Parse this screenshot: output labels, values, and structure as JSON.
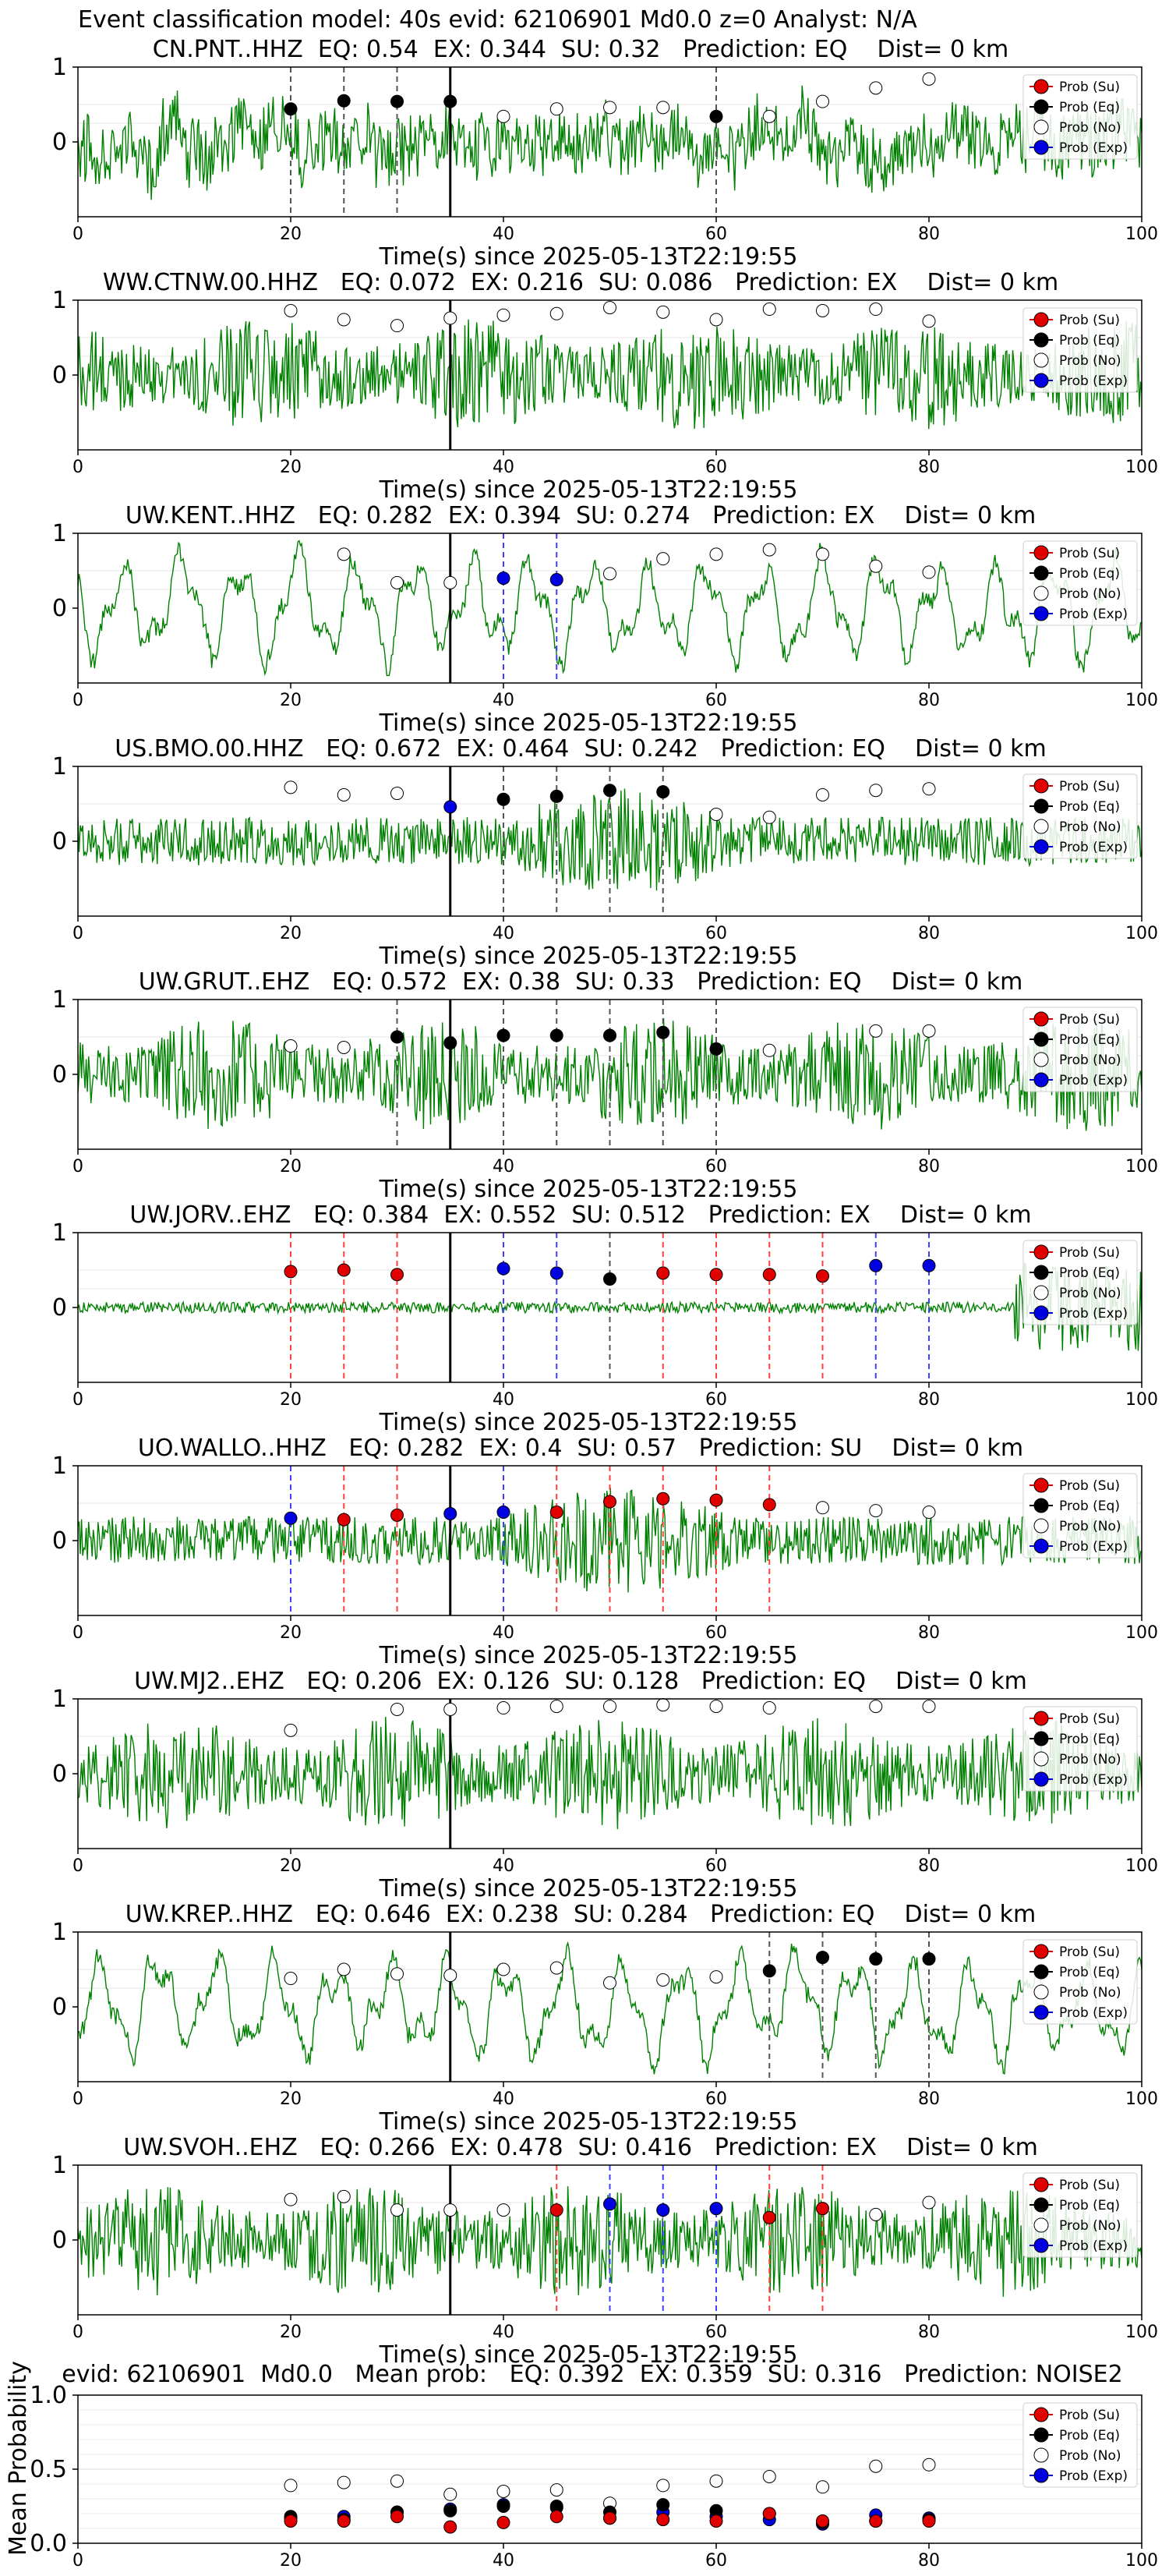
{
  "suptitle": "Event classification model: 40s evid: 62106901 Md0.0 z=0 Analyst: N/A",
  "colors": {
    "trace": "#008000",
    "su": "#e00000",
    "eq": "#000000",
    "no": "#ffffff",
    "exp": "#0000e0",
    "su_line": "#ff4040",
    "eq_line": "#555555",
    "exp_line": "#4040ff"
  },
  "legend_labels": [
    "Prob (Su)",
    "Prob (Eq)",
    "Prob (No)",
    "Prob (Exp)"
  ],
  "chart_data": [
    {
      "type": "line",
      "title": "CN.PNT..HHZ  EQ: 0.54  EX: 0.344  SU: 0.32   Prediction: EQ    Dist= 0 km",
      "xlabel": "Time(s) since 2025-05-13T22:19:55",
      "xlim": [
        0,
        100
      ],
      "ylim": [
        -1,
        1
      ],
      "xticks": [
        "0",
        "20",
        "40",
        "60",
        "80",
        "100"
      ],
      "yticks": [
        "1",
        "0"
      ],
      "legend_position": "top-right",
      "trace_style": "moderate-noise",
      "arrival_time": 35,
      "windows": [
        {
          "x": 20,
          "class": "eq",
          "p": 0.44
        },
        {
          "x": 25,
          "class": "eq",
          "p": 0.55
        },
        {
          "x": 30,
          "class": "eq",
          "p": 0.54
        },
        {
          "x": 35,
          "class": "eq",
          "p": 0.54
        },
        {
          "x": 40,
          "class": "no",
          "p": 0.34
        },
        {
          "x": 45,
          "class": "no",
          "p": 0.44
        },
        {
          "x": 50,
          "class": "no",
          "p": 0.46
        },
        {
          "x": 55,
          "class": "no",
          "p": 0.46
        },
        {
          "x": 60,
          "class": "eq",
          "p": 0.34
        },
        {
          "x": 65,
          "class": "no",
          "p": 0.34
        },
        {
          "x": 70,
          "class": "no",
          "p": 0.54
        },
        {
          "x": 75,
          "class": "no",
          "p": 0.72
        },
        {
          "x": 80,
          "class": "no",
          "p": 0.84
        }
      ]
    },
    {
      "type": "line",
      "title": "WW.CTNW.00.HHZ   EQ: 0.072  EX: 0.216  SU: 0.086   Prediction: EX    Dist= 0 km",
      "xlabel": "Time(s) since 2025-05-13T22:19:55",
      "xlim": [
        0,
        100
      ],
      "ylim": [
        -1,
        1
      ],
      "xticks": [
        "0",
        "20",
        "40",
        "60",
        "80",
        "100"
      ],
      "yticks": [
        "1",
        "0"
      ],
      "legend_position": "top-right",
      "trace_style": "dense-noise",
      "arrival_time": 35,
      "windows": [
        {
          "x": 20,
          "class": "no",
          "p": 0.86
        },
        {
          "x": 25,
          "class": "no",
          "p": 0.74
        },
        {
          "x": 30,
          "class": "no",
          "p": 0.66
        },
        {
          "x": 35,
          "class": "no",
          "p": 0.76
        },
        {
          "x": 40,
          "class": "no",
          "p": 0.8
        },
        {
          "x": 45,
          "class": "no",
          "p": 0.82
        },
        {
          "x": 50,
          "class": "no",
          "p": 0.9
        },
        {
          "x": 55,
          "class": "no",
          "p": 0.84
        },
        {
          "x": 60,
          "class": "no",
          "p": 0.74
        },
        {
          "x": 65,
          "class": "no",
          "p": 0.88
        },
        {
          "x": 70,
          "class": "no",
          "p": 0.86
        },
        {
          "x": 75,
          "class": "no",
          "p": 0.88
        },
        {
          "x": 80,
          "class": "no",
          "p": 0.72
        }
      ]
    },
    {
      "type": "line",
      "title": "UW.KENT..HHZ   EQ: 0.282  EX: 0.394  SU: 0.274   Prediction: EX    Dist= 0 km",
      "xlabel": "Time(s) since 2025-05-13T22:19:55",
      "xlim": [
        0,
        100
      ],
      "ylim": [
        -1,
        1
      ],
      "xticks": [
        "0",
        "20",
        "40",
        "60",
        "80",
        "100"
      ],
      "yticks": [
        "1",
        "0"
      ],
      "legend_position": "top-right",
      "trace_style": "oscillation",
      "arrival_time": 35,
      "windows": [
        {
          "x": 25,
          "class": "no",
          "p": 0.72
        },
        {
          "x": 30,
          "class": "no",
          "p": 0.34
        },
        {
          "x": 35,
          "class": "no",
          "p": 0.34
        },
        {
          "x": 40,
          "class": "exp",
          "p": 0.4
        },
        {
          "x": 45,
          "class": "exp",
          "p": 0.38
        },
        {
          "x": 50,
          "class": "no",
          "p": 0.46
        },
        {
          "x": 55,
          "class": "no",
          "p": 0.66
        },
        {
          "x": 60,
          "class": "no",
          "p": 0.72
        },
        {
          "x": 65,
          "class": "no",
          "p": 0.78
        },
        {
          "x": 70,
          "class": "no",
          "p": 0.72
        },
        {
          "x": 75,
          "class": "no",
          "p": 0.56
        },
        {
          "x": 80,
          "class": "no",
          "p": 0.48
        }
      ]
    },
    {
      "type": "line",
      "title": "US.BMO.00.HHZ   EQ: 0.672  EX: 0.464  SU: 0.242   Prediction: EQ    Dist= 0 km",
      "xlabel": "Time(s) since 2025-05-13T22:19:55",
      "xlim": [
        0,
        100
      ],
      "ylim": [
        -1,
        1
      ],
      "xticks": [
        "0",
        "20",
        "40",
        "60",
        "80",
        "100"
      ],
      "yticks": [
        "1",
        "0"
      ],
      "legend_position": "top-right",
      "trace_style": "burst",
      "arrival_time": 35,
      "windows": [
        {
          "x": 20,
          "class": "no",
          "p": 0.72
        },
        {
          "x": 25,
          "class": "no",
          "p": 0.62
        },
        {
          "x": 30,
          "class": "no",
          "p": 0.64
        },
        {
          "x": 35,
          "class": "exp",
          "p": 0.46
        },
        {
          "x": 40,
          "class": "eq",
          "p": 0.56
        },
        {
          "x": 45,
          "class": "eq",
          "p": 0.6
        },
        {
          "x": 50,
          "class": "eq",
          "p": 0.68
        },
        {
          "x": 55,
          "class": "eq",
          "p": 0.66
        },
        {
          "x": 60,
          "class": "no",
          "p": 0.36
        },
        {
          "x": 65,
          "class": "no",
          "p": 0.32
        },
        {
          "x": 70,
          "class": "no",
          "p": 0.62
        },
        {
          "x": 75,
          "class": "no",
          "p": 0.68
        },
        {
          "x": 80,
          "class": "no",
          "p": 0.7
        }
      ]
    },
    {
      "type": "line",
      "title": "UW.GRUT..EHZ   EQ: 0.572  EX: 0.38  SU: 0.33   Prediction: EQ    Dist= 0 km",
      "xlabel": "Time(s) since 2025-05-13T22:19:55",
      "xlim": [
        0,
        100
      ],
      "ylim": [
        -1,
        1
      ],
      "xticks": [
        "0",
        "20",
        "40",
        "60",
        "80",
        "100"
      ],
      "yticks": [
        "1",
        "0"
      ],
      "legend_position": "top-right",
      "trace_style": "dense-noise",
      "arrival_time": 35,
      "windows": [
        {
          "x": 20,
          "class": "no",
          "p": 0.38
        },
        {
          "x": 25,
          "class": "no",
          "p": 0.36
        },
        {
          "x": 30,
          "class": "eq",
          "p": 0.5
        },
        {
          "x": 35,
          "class": "eq",
          "p": 0.42
        },
        {
          "x": 40,
          "class": "eq",
          "p": 0.52
        },
        {
          "x": 45,
          "class": "eq",
          "p": 0.52
        },
        {
          "x": 50,
          "class": "eq",
          "p": 0.52
        },
        {
          "x": 55,
          "class": "eq",
          "p": 0.56
        },
        {
          "x": 60,
          "class": "eq",
          "p": 0.34
        },
        {
          "x": 65,
          "class": "no",
          "p": 0.32
        },
        {
          "x": 75,
          "class": "no",
          "p": 0.58
        },
        {
          "x": 80,
          "class": "no",
          "p": 0.58
        }
      ]
    },
    {
      "type": "line",
      "title": "UW.JORV..EHZ   EQ: 0.384  EX: 0.552  SU: 0.512   Prediction: EX    Dist= 0 km",
      "xlabel": "Time(s) since 2025-05-13T22:19:55",
      "xlim": [
        0,
        100
      ],
      "ylim": [
        -1,
        1
      ],
      "xticks": [
        "0",
        "20",
        "40",
        "60",
        "80",
        "100"
      ],
      "yticks": [
        "1",
        "0"
      ],
      "legend_position": "top-right",
      "trace_style": "quiet-late-burst",
      "arrival_time": 35,
      "windows": [
        {
          "x": 20,
          "class": "su",
          "p": 0.48
        },
        {
          "x": 25,
          "class": "su",
          "p": 0.5
        },
        {
          "x": 30,
          "class": "su",
          "p": 0.44
        },
        {
          "x": 40,
          "class": "exp",
          "p": 0.52
        },
        {
          "x": 45,
          "class": "exp",
          "p": 0.46
        },
        {
          "x": 50,
          "class": "eq",
          "p": 0.38
        },
        {
          "x": 55,
          "class": "su",
          "p": 0.46
        },
        {
          "x": 60,
          "class": "su",
          "p": 0.44
        },
        {
          "x": 65,
          "class": "su",
          "p": 0.44
        },
        {
          "x": 70,
          "class": "su",
          "p": 0.42
        },
        {
          "x": 75,
          "class": "exp",
          "p": 0.56
        },
        {
          "x": 80,
          "class": "exp",
          "p": 0.56
        }
      ]
    },
    {
      "type": "line",
      "title": "UO.WALLO..HHZ   EQ: 0.282  EX: 0.4  SU: 0.57   Prediction: SU    Dist= 0 km",
      "xlabel": "Time(s) since 2025-05-13T22:19:55",
      "xlim": [
        0,
        100
      ],
      "ylim": [
        -1,
        1
      ],
      "xticks": [
        "0",
        "20",
        "40",
        "60",
        "80",
        "100"
      ],
      "yticks": [
        "1",
        "0"
      ],
      "legend_position": "top-right",
      "trace_style": "burst",
      "arrival_time": 35,
      "windows": [
        {
          "x": 20,
          "class": "exp",
          "p": 0.3
        },
        {
          "x": 25,
          "class": "su",
          "p": 0.28
        },
        {
          "x": 30,
          "class": "su",
          "p": 0.34
        },
        {
          "x": 35,
          "class": "exp",
          "p": 0.36
        },
        {
          "x": 40,
          "class": "exp",
          "p": 0.38
        },
        {
          "x": 45,
          "class": "su",
          "p": 0.38
        },
        {
          "x": 50,
          "class": "su",
          "p": 0.52
        },
        {
          "x": 55,
          "class": "su",
          "p": 0.56
        },
        {
          "x": 60,
          "class": "su",
          "p": 0.54
        },
        {
          "x": 65,
          "class": "su",
          "p": 0.48
        },
        {
          "x": 70,
          "class": "no",
          "p": 0.44
        },
        {
          "x": 75,
          "class": "no",
          "p": 0.4
        },
        {
          "x": 80,
          "class": "no",
          "p": 0.38
        }
      ]
    },
    {
      "type": "line",
      "title": "UW.MJ2..EHZ   EQ: 0.206  EX: 0.126  SU: 0.128   Prediction: EQ    Dist= 0 km",
      "xlabel": "Time(s) since 2025-05-13T22:19:55",
      "xlim": [
        0,
        100
      ],
      "ylim": [
        -1,
        1
      ],
      "xticks": [
        "0",
        "20",
        "40",
        "60",
        "80",
        "100"
      ],
      "yticks": [
        "1",
        "0"
      ],
      "legend_position": "top-right",
      "trace_style": "dense-noise",
      "arrival_time": 35,
      "windows": [
        {
          "x": 20,
          "class": "no",
          "p": 0.58
        },
        {
          "x": 30,
          "class": "no",
          "p": 0.86
        },
        {
          "x": 35,
          "class": "no",
          "p": 0.86
        },
        {
          "x": 40,
          "class": "no",
          "p": 0.88
        },
        {
          "x": 45,
          "class": "no",
          "p": 0.9
        },
        {
          "x": 50,
          "class": "no",
          "p": 0.9
        },
        {
          "x": 55,
          "class": "no",
          "p": 0.92
        },
        {
          "x": 60,
          "class": "no",
          "p": 0.9
        },
        {
          "x": 65,
          "class": "no",
          "p": 0.88
        },
        {
          "x": 75,
          "class": "no",
          "p": 0.9
        },
        {
          "x": 80,
          "class": "no",
          "p": 0.9
        }
      ]
    },
    {
      "type": "line",
      "title": "UW.KREP..HHZ   EQ: 0.646  EX: 0.238  SU: 0.284   Prediction: EQ    Dist= 0 km",
      "xlabel": "Time(s) since 2025-05-13T22:19:55",
      "xlim": [
        0,
        100
      ],
      "ylim": [
        -1,
        1
      ],
      "xticks": [
        "0",
        "20",
        "40",
        "60",
        "80",
        "100"
      ],
      "yticks": [
        "1",
        "0"
      ],
      "legend_position": "top-right",
      "trace_style": "oscillation",
      "arrival_time": 35,
      "windows": [
        {
          "x": 20,
          "class": "no",
          "p": 0.38
        },
        {
          "x": 25,
          "class": "no",
          "p": 0.5
        },
        {
          "x": 30,
          "class": "no",
          "p": 0.44
        },
        {
          "x": 35,
          "class": "no",
          "p": 0.42
        },
        {
          "x": 40,
          "class": "no",
          "p": 0.5
        },
        {
          "x": 45,
          "class": "no",
          "p": 0.52
        },
        {
          "x": 50,
          "class": "no",
          "p": 0.32
        },
        {
          "x": 55,
          "class": "no",
          "p": 0.36
        },
        {
          "x": 60,
          "class": "no",
          "p": 0.4
        },
        {
          "x": 65,
          "class": "eq",
          "p": 0.48
        },
        {
          "x": 70,
          "class": "eq",
          "p": 0.66
        },
        {
          "x": 75,
          "class": "eq",
          "p": 0.64
        },
        {
          "x": 80,
          "class": "eq",
          "p": 0.64
        }
      ]
    },
    {
      "type": "line",
      "title": "UW.SVOH..EHZ   EQ: 0.266  EX: 0.478  SU: 0.416   Prediction: EX    Dist= 0 km",
      "xlabel": "Time(s) since 2025-05-13T22:19:55",
      "xlim": [
        0,
        100
      ],
      "ylim": [
        -1,
        1
      ],
      "xticks": [
        "0",
        "20",
        "40",
        "60",
        "80",
        "100"
      ],
      "yticks": [
        "1",
        "0"
      ],
      "legend_position": "top-right",
      "trace_style": "dense-noise",
      "arrival_time": 35,
      "windows": [
        {
          "x": 20,
          "class": "no",
          "p": 0.54
        },
        {
          "x": 25,
          "class": "no",
          "p": 0.58
        },
        {
          "x": 30,
          "class": "no",
          "p": 0.4
        },
        {
          "x": 35,
          "class": "no",
          "p": 0.4
        },
        {
          "x": 40,
          "class": "no",
          "p": 0.4
        },
        {
          "x": 45,
          "class": "su",
          "p": 0.4
        },
        {
          "x": 50,
          "class": "exp",
          "p": 0.48
        },
        {
          "x": 55,
          "class": "exp",
          "p": 0.4
        },
        {
          "x": 60,
          "class": "exp",
          "p": 0.42
        },
        {
          "x": 65,
          "class": "su",
          "p": 0.3
        },
        {
          "x": 70,
          "class": "su",
          "p": 0.42
        },
        {
          "x": 75,
          "class": "no",
          "p": 0.34
        },
        {
          "x": 80,
          "class": "no",
          "p": 0.5
        }
      ]
    },
    {
      "type": "scatter",
      "title": "evid: 62106901  Md0.0   Mean prob:   EQ: 0.392  EX: 0.359  SU: 0.316   Prediction: NOISE2",
      "ylabel": "Mean Probability",
      "xlim": [
        0,
        100
      ],
      "ylim": [
        0,
        1
      ],
      "xticks": [
        "0",
        "20",
        "40",
        "60",
        "80",
        "100"
      ],
      "yticks": [
        "0.0",
        "0.5",
        "1.0"
      ],
      "legend_position": "top-right",
      "x": [
        20,
        25,
        30,
        35,
        40,
        45,
        50,
        55,
        60,
        65,
        70,
        75,
        80
      ],
      "series": [
        {
          "class": "no",
          "values": [
            0.39,
            0.41,
            0.42,
            0.33,
            0.35,
            0.36,
            0.27,
            0.39,
            0.42,
            0.45,
            0.38,
            0.52,
            0.53
          ]
        },
        {
          "class": "exp",
          "values": [
            0.17,
            0.18,
            0.21,
            0.23,
            0.26,
            0.24,
            0.17,
            0.21,
            0.18,
            0.16,
            0.13,
            0.19,
            0.17
          ]
        },
        {
          "class": "eq",
          "values": [
            0.18,
            0.16,
            0.21,
            0.22,
            0.25,
            0.25,
            0.21,
            0.26,
            0.22,
            0.2,
            0.14,
            0.15,
            0.16
          ]
        },
        {
          "class": "su",
          "values": [
            0.15,
            0.15,
            0.18,
            0.11,
            0.14,
            0.18,
            0.17,
            0.16,
            0.15,
            0.2,
            0.15,
            0.15,
            0.15
          ]
        }
      ]
    }
  ]
}
